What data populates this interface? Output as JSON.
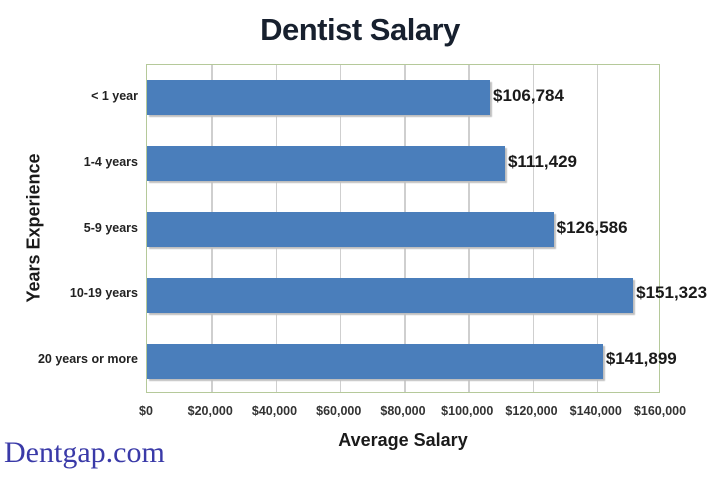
{
  "chart_data": {
    "type": "bar",
    "orientation": "horizontal",
    "title": "Dentist Salary",
    "xlabel": "Average Salary",
    "ylabel": "Years Experience",
    "categories": [
      "< 1 year",
      "1-4 years",
      "5-9 years",
      "10-19 years",
      "20 years or more"
    ],
    "values": [
      106784,
      111429,
      126586,
      151323,
      141899
    ],
    "data_labels": [
      "$106,784",
      "$111,429",
      "$126,586",
      "$151,323",
      "$141,899"
    ],
    "xlim": [
      0,
      160000
    ],
    "x_ticks": [
      "$0",
      "$20,000",
      "$40,000",
      "$60,000",
      "$80,000",
      "$100,000",
      "$120,000",
      "$140,000",
      "$160,000"
    ],
    "grid": true,
    "legend": null,
    "bar_color": "#4a7ebb"
  },
  "watermark": "Dentgap.com"
}
